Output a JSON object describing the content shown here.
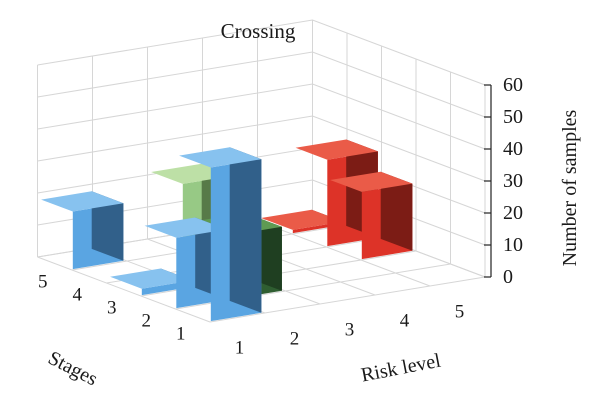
{
  "chart_data": {
    "type": "bar3d",
    "title": "Crossing",
    "xlabel": "Stages",
    "ylabel": "Risk level",
    "zlabel": "Number of samples",
    "stages": [
      "1",
      "2",
      "3",
      "4",
      "5"
    ],
    "risk_levels": [
      "1",
      "2",
      "3",
      "4",
      "5"
    ],
    "zlim": [
      0,
      60
    ],
    "zticks": [
      "0",
      "10",
      "20",
      "30",
      "40",
      "50",
      "60"
    ],
    "grid": true,
    "series": [
      {
        "risk_level": "1",
        "values": [
          48,
          22,
          2,
          0,
          18
        ]
      },
      {
        "risk_level": "2",
        "values": [
          0,
          20,
          15,
          0,
          0
        ]
      },
      {
        "risk_level": "3",
        "values": [
          0,
          0,
          0,
          3,
          21
        ]
      },
      {
        "risk_level": "4",
        "values": [
          0,
          0,
          0,
          0,
          0
        ]
      },
      {
        "risk_level": "5",
        "values": [
          0,
          0,
          21,
          27,
          1
        ]
      }
    ],
    "colors": {
      "1": {
        "front": "#5aa5e2",
        "side": "#31608a",
        "top": "#87c2ef"
      },
      "2": {
        "front": "#2f5e31",
        "side": "#1f3f21",
        "top": "#5f9a53"
      },
      "3": {
        "front": "#97c985",
        "side": "#577a48",
        "top": "#bde0a6"
      },
      "4": {
        "front": "#e9a02a",
        "side": "#b47415",
        "top": "#f3c057"
      },
      "5": {
        "front": "#dd3328",
        "side": "#7c1c15",
        "top": "#ea5b48"
      }
    }
  }
}
